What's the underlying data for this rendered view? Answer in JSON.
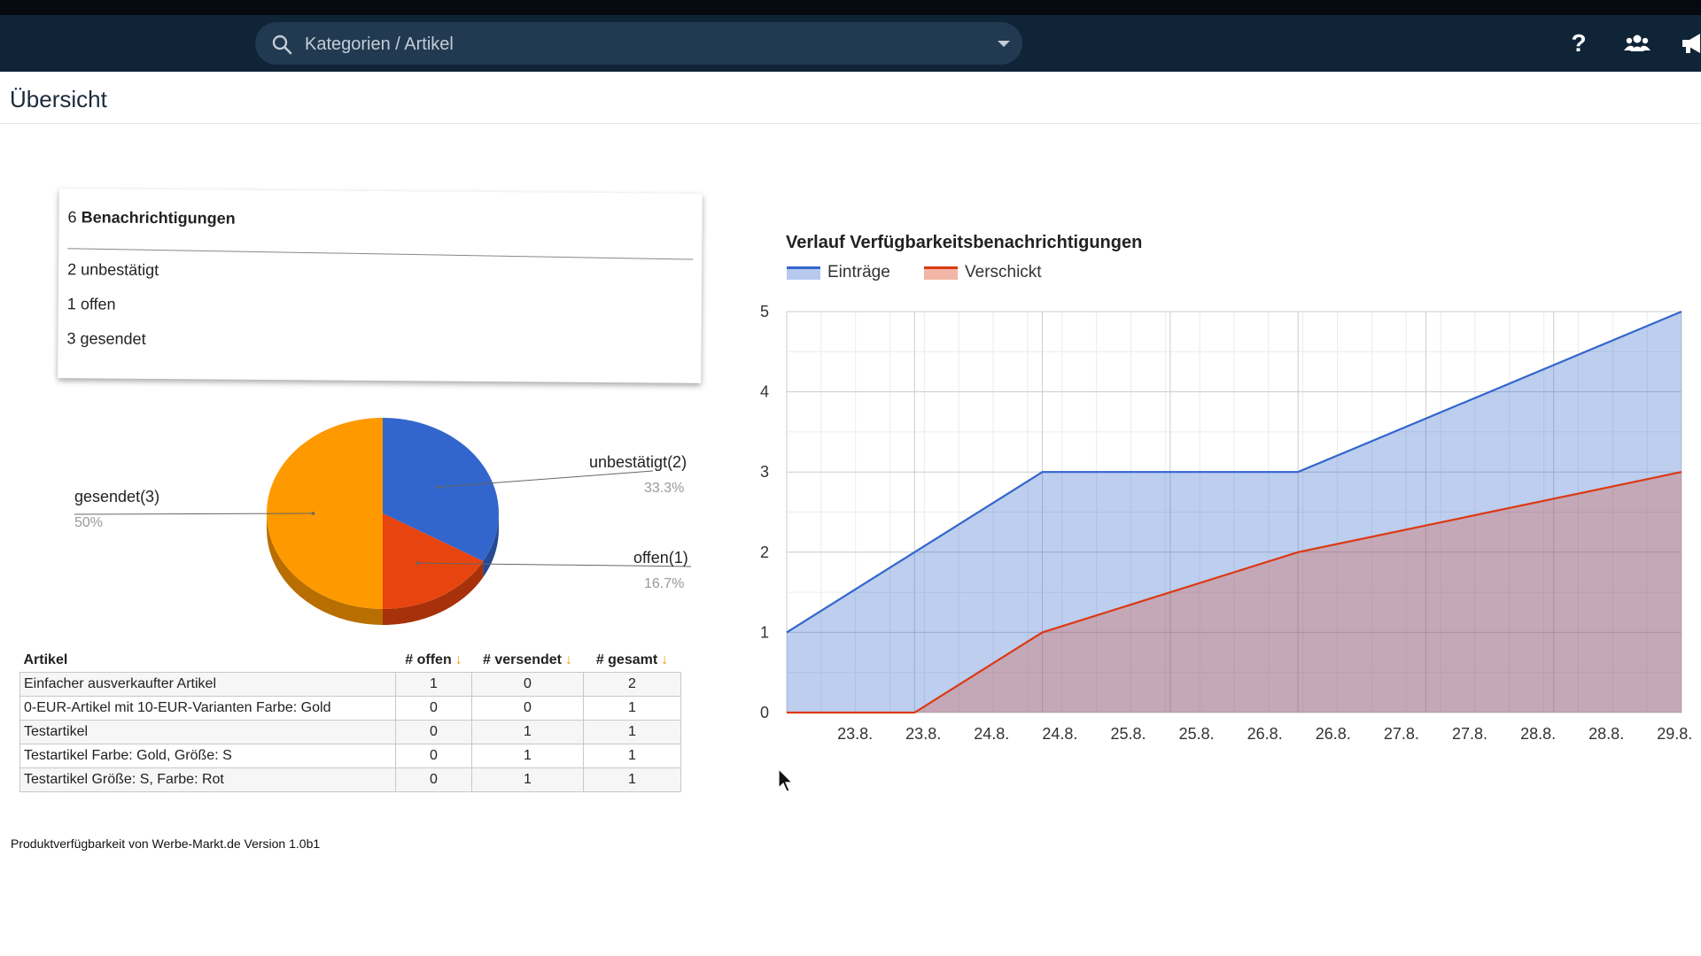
{
  "header": {
    "search_placeholder": "Kategorien / Artikel",
    "icons": [
      "search-icon",
      "chevron-down-icon",
      "help-icon",
      "users-icon",
      "megaphone-icon"
    ],
    "help_label": "?"
  },
  "page": {
    "title": "Übersicht"
  },
  "notifications": {
    "total_count": "6",
    "total_label": "Benachrichtigungen",
    "items": [
      {
        "count": "2",
        "label": "unbestätigt"
      },
      {
        "count": "1",
        "label": "offen"
      },
      {
        "count": "3",
        "label": "gesendet"
      }
    ]
  },
  "pie": {
    "labels": {
      "unconfirmed": "unbestätigt(2)",
      "unconfirmed_pct": "33.3%",
      "open": "offen(1)",
      "open_pct": "16.7%",
      "sent": "gesendet(3)",
      "sent_pct": "50%"
    },
    "colors": {
      "unconfirmed": "#3366cc",
      "open": "#e8440f",
      "sent": "#ff9900"
    }
  },
  "table": {
    "headers": [
      "Artikel",
      "# offen",
      "# versendet",
      "# gesamt"
    ],
    "sort_arrow": "↓",
    "rows": [
      [
        "Einfacher ausverkaufter Artikel",
        "1",
        "0",
        "2"
      ],
      [
        "0-EUR-Artikel mit 10-EUR-Varianten Farbe: Gold",
        "0",
        "0",
        "1"
      ],
      [
        "Testartikel",
        "0",
        "1",
        "1"
      ],
      [
        "Testartikel Farbe: Gold, Größe: S",
        "0",
        "1",
        "1"
      ],
      [
        "Testartikel Größe: S, Farbe: Rot",
        "0",
        "1",
        "1"
      ]
    ]
  },
  "footer": {
    "text": "Produktverfügbarkeit von Werbe-Markt.de Version 1.0b1"
  },
  "chart_data": [
    {
      "type": "pie",
      "categories": [
        "unbestätigt",
        "offen",
        "gesendet"
      ],
      "values": [
        2,
        1,
        3
      ],
      "colors": [
        "#3366cc",
        "#e8440f",
        "#ff9900"
      ]
    },
    {
      "type": "area",
      "title": "Verlauf Verfügbarkeitsbenachrichtigungen",
      "xlabel": "",
      "ylabel": "",
      "x_ticks": [
        "23.8.",
        "23.8.",
        "24.8.",
        "24.8.",
        "25.8.",
        "25.8.",
        "26.8.",
        "26.8.",
        "27.8.",
        "27.8.",
        "28.8.",
        "28.8.",
        "29.8."
      ],
      "x_start": "22.8.",
      "x_end": "29.8.",
      "ylim": [
        0,
        5
      ],
      "y_ticks": [
        0,
        1,
        2,
        3,
        4,
        5
      ],
      "legend_position": "top-left",
      "grid": true,
      "series": [
        {
          "name": "Einträge",
          "color": "#3366cc",
          "points": [
            [
              "22.8.",
              1
            ],
            [
              "23.8.",
              2
            ],
            [
              "24.8.",
              3
            ],
            [
              "26.8.",
              3
            ],
            [
              "29.8.",
              5
            ]
          ]
        },
        {
          "name": "Verschickt",
          "color": "#dc3912",
          "points": [
            [
              "22.8.",
              0
            ],
            [
              "23.8.",
              0
            ],
            [
              "24.8.",
              1
            ],
            [
              "26.8.",
              2
            ],
            [
              "29.8.",
              3
            ]
          ]
        }
      ]
    }
  ]
}
